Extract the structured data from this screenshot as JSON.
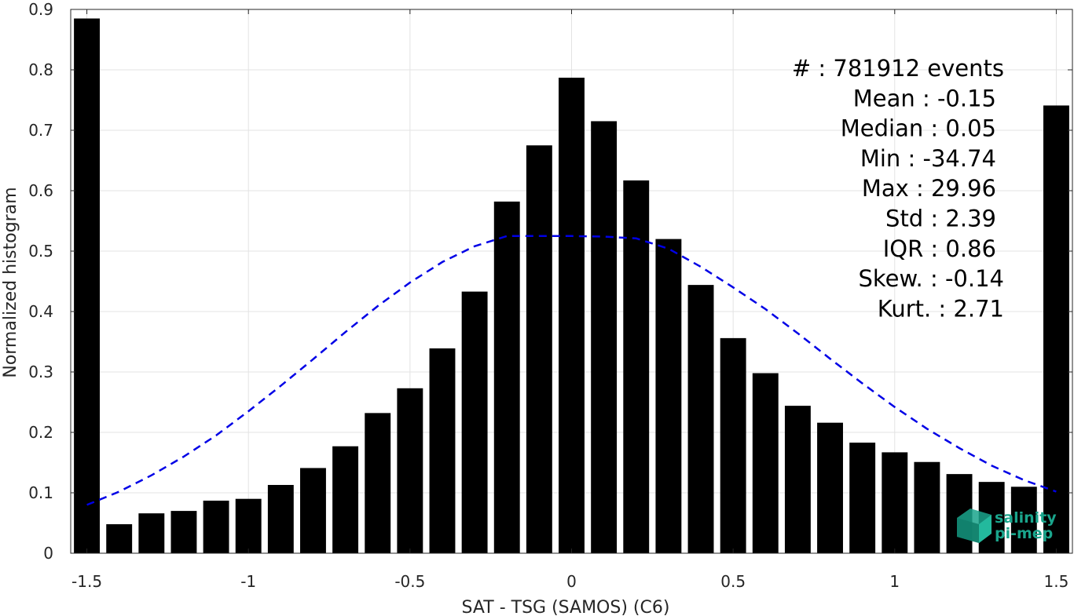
{
  "chart_data": {
    "type": "bar",
    "title": "",
    "xlabel": "SAT - TSG (SAMOS) (C6)",
    "ylabel": "Normalized histogram",
    "xlim": [
      -1.55,
      1.55
    ],
    "ylim": [
      0,
      0.9
    ],
    "xticks": [
      -1.5,
      -1,
      -0.5,
      0,
      0.5,
      1,
      1.5
    ],
    "xtick_labels": [
      "-1.5",
      "-1",
      "-0.5",
      "0",
      "0.5",
      "1",
      "1.5"
    ],
    "yticks": [
      0,
      0.1,
      0.2,
      0.3,
      0.4,
      0.5,
      0.6,
      0.7,
      0.8,
      0.9
    ],
    "ytick_labels": [
      "0",
      "0.1",
      "0.2",
      "0.3",
      "0.4",
      "0.5",
      "0.6",
      "0.7",
      "0.8",
      "0.9"
    ],
    "grid": true,
    "bar_color": "#000000",
    "bin_width": 0.1,
    "x": [
      -1.5,
      -1.4,
      -1.3,
      -1.2,
      -1.1,
      -1.0,
      -0.9,
      -0.8,
      -0.7,
      -0.6,
      -0.5,
      -0.4,
      -0.3,
      -0.2,
      -0.1,
      0.0,
      0.1,
      0.2,
      0.3,
      0.4,
      0.5,
      0.6,
      0.7,
      0.8,
      0.9,
      1.0,
      1.1,
      1.2,
      1.3,
      1.4,
      1.5
    ],
    "values": [
      0.885,
      0.048,
      0.066,
      0.07,
      0.087,
      0.09,
      0.113,
      0.141,
      0.177,
      0.232,
      0.273,
      0.339,
      0.433,
      0.582,
      0.675,
      0.787,
      0.715,
      0.617,
      0.52,
      0.444,
      0.356,
      0.298,
      0.244,
      0.216,
      0.183,
      0.167,
      0.151,
      0.131,
      0.118,
      0.11,
      0.741
    ],
    "fit_curve": {
      "style": "dashed",
      "color": "#0000e6",
      "x": [
        -1.5,
        -1.4,
        -1.3,
        -1.2,
        -1.1,
        -1.0,
        -0.9,
        -0.8,
        -0.7,
        -0.6,
        -0.5,
        -0.4,
        -0.3,
        -0.2,
        -0.1,
        0.0,
        0.1,
        0.2,
        0.3,
        0.4,
        0.5,
        0.6,
        0.7,
        0.8,
        0.9,
        1.0,
        1.1,
        1.2,
        1.3,
        1.4,
        1.5
      ],
      "y": [
        0.08,
        0.102,
        0.129,
        0.16,
        0.195,
        0.235,
        0.277,
        0.321,
        0.366,
        0.409,
        0.448,
        0.482,
        0.508,
        0.525,
        0.525,
        0.525,
        0.524,
        0.521,
        0.504,
        0.474,
        0.44,
        0.404,
        0.364,
        0.322,
        0.281,
        0.242,
        0.206,
        0.174,
        0.145,
        0.121,
        0.102
      ]
    },
    "stats_box": {
      "placement": "top-right",
      "lines": [
        "#  : 781912 events",
        "Mean : -0.15",
        "Median : 0.05",
        "Min : -34.74",
        "Max : 29.96",
        "Std : 2.39",
        "IQR : 0.86",
        "Skew. : -0.14",
        "Kurt. : 2.71"
      ]
    }
  },
  "logo": {
    "line1": "salinity",
    "line2": "pi-mep",
    "color": "#1aa58c"
  }
}
